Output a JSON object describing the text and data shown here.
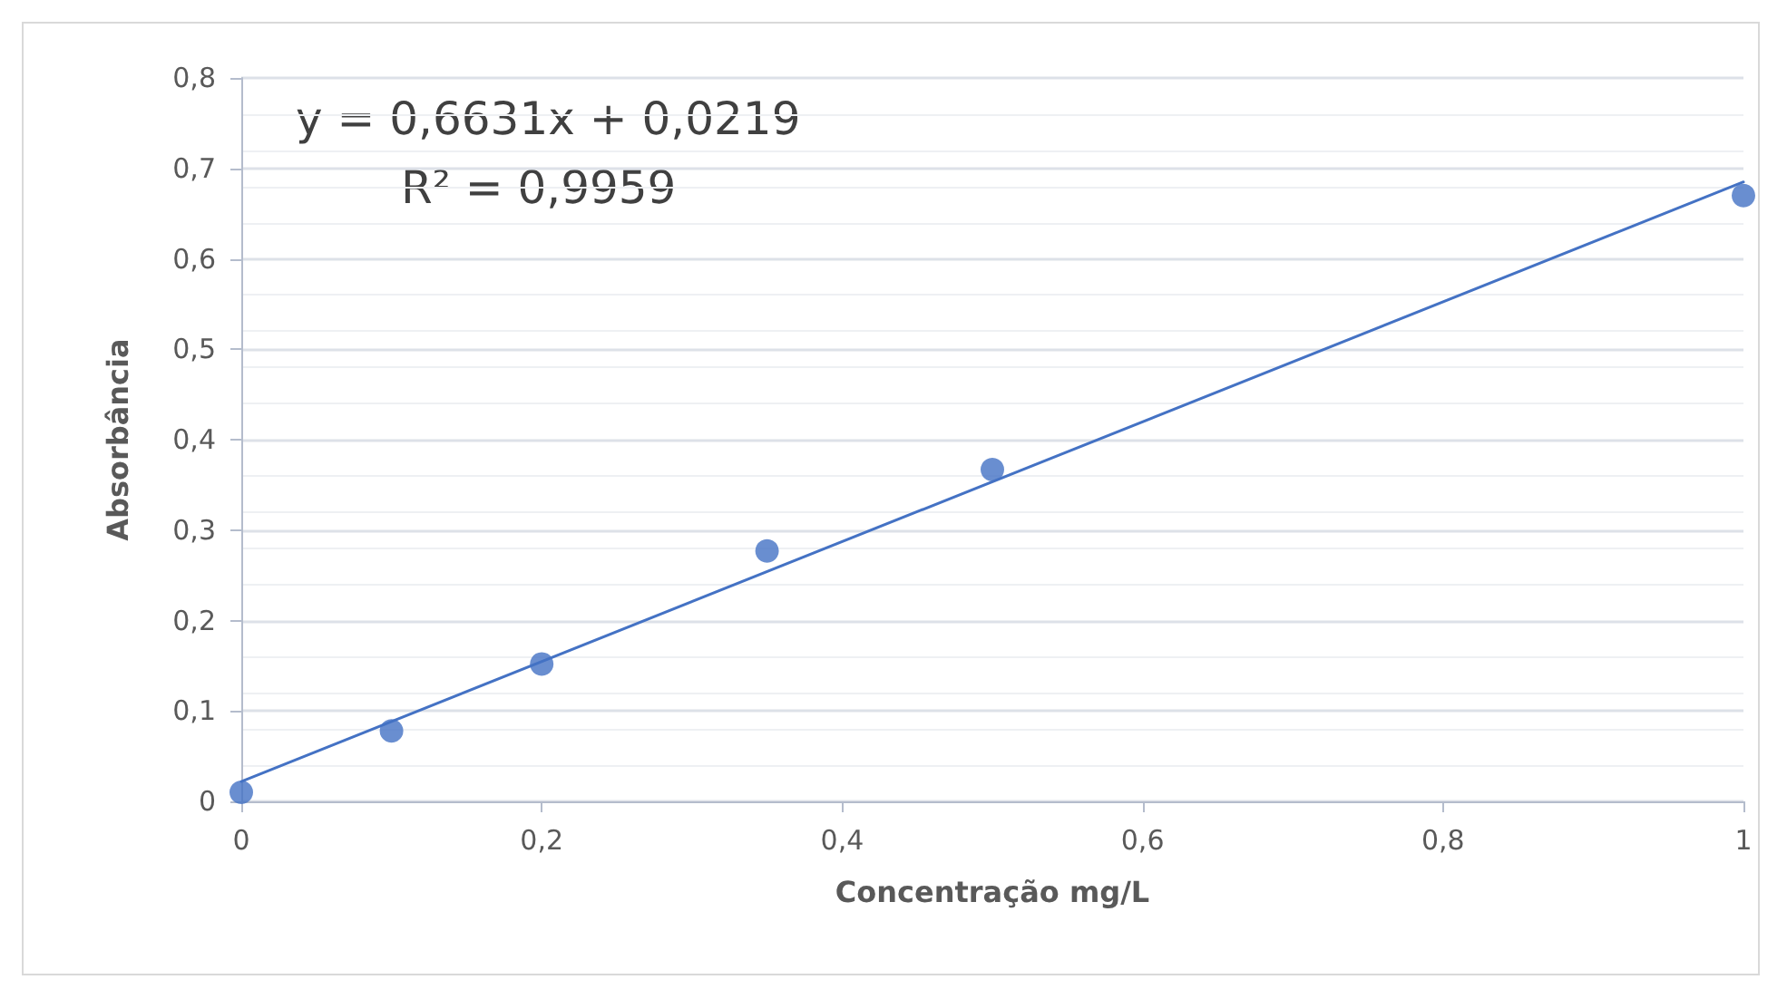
{
  "chart_data": {
    "type": "scatter",
    "xlabel": "Concentração mg/L",
    "ylabel": "Absorbância",
    "annotations": [
      "y = 0,6631x + 0,0219",
      "R² = 0,9959"
    ],
    "series": [
      {
        "color": "#4472c4",
        "x": [
          0,
          0.1,
          0.2,
          0.35,
          0.5,
          1
        ],
        "values": [
          0.01,
          0.078,
          0.152,
          0.277,
          0.367,
          0.67
        ]
      },
      {
        "type": "line",
        "color": "#4472c4",
        "x": [
          0,
          1
        ],
        "values": [
          0.022,
          0.685
        ],
        "marker": "none"
      }
    ],
    "xlim": [
      0,
      1
    ],
    "xticks": [
      0,
      {
        "value": 0.2,
        "label": "0,2"
      },
      {
        "value": 0.4,
        "label": "0,4"
      },
      {
        "value": 0.6,
        "label": "0,6"
      },
      {
        "value": 0.8,
        "label": "0,8"
      },
      1
    ],
    "ylim": [
      0,
      0.8
    ],
    "yticks": [
      0,
      {
        "value": 0.1,
        "label": "0,1"
      },
      {
        "value": 0.2,
        "label": "0,2"
      },
      {
        "value": 0.3,
        "label": "0,3"
      },
      {
        "value": 0.4,
        "label": "0,4"
      },
      {
        "value": 0.5,
        "label": "0,5"
      },
      {
        "value": 0.6,
        "label": "0,6"
      },
      {
        "value": 0.7,
        "label": "0,7"
      },
      {
        "value": 0.8,
        "label": "0,8"
      }
    ],
    "grid": "y",
    "marker": "circle"
  }
}
